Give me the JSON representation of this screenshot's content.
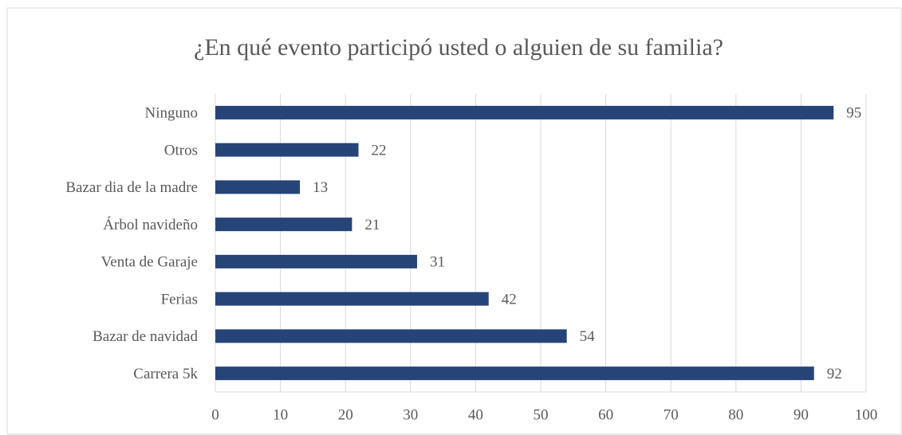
{
  "chart_data": {
    "type": "hbar",
    "title": "¿En qué evento participó usted o alguien de su familia?",
    "categories": [
      "Ninguno",
      "Otros",
      "Bazar dia de la madre",
      "Árbol navideño",
      "Venta de Garaje",
      "Ferias",
      "Bazar de navidad",
      "Carrera 5k"
    ],
    "values": [
      95,
      22,
      13,
      21,
      31,
      42,
      54,
      92
    ],
    "color": "#264478",
    "xlim": [
      0,
      100
    ],
    "xticks": [
      0,
      10,
      20,
      30,
      40,
      50,
      60,
      70,
      80,
      90,
      100
    ],
    "grid": true
  }
}
